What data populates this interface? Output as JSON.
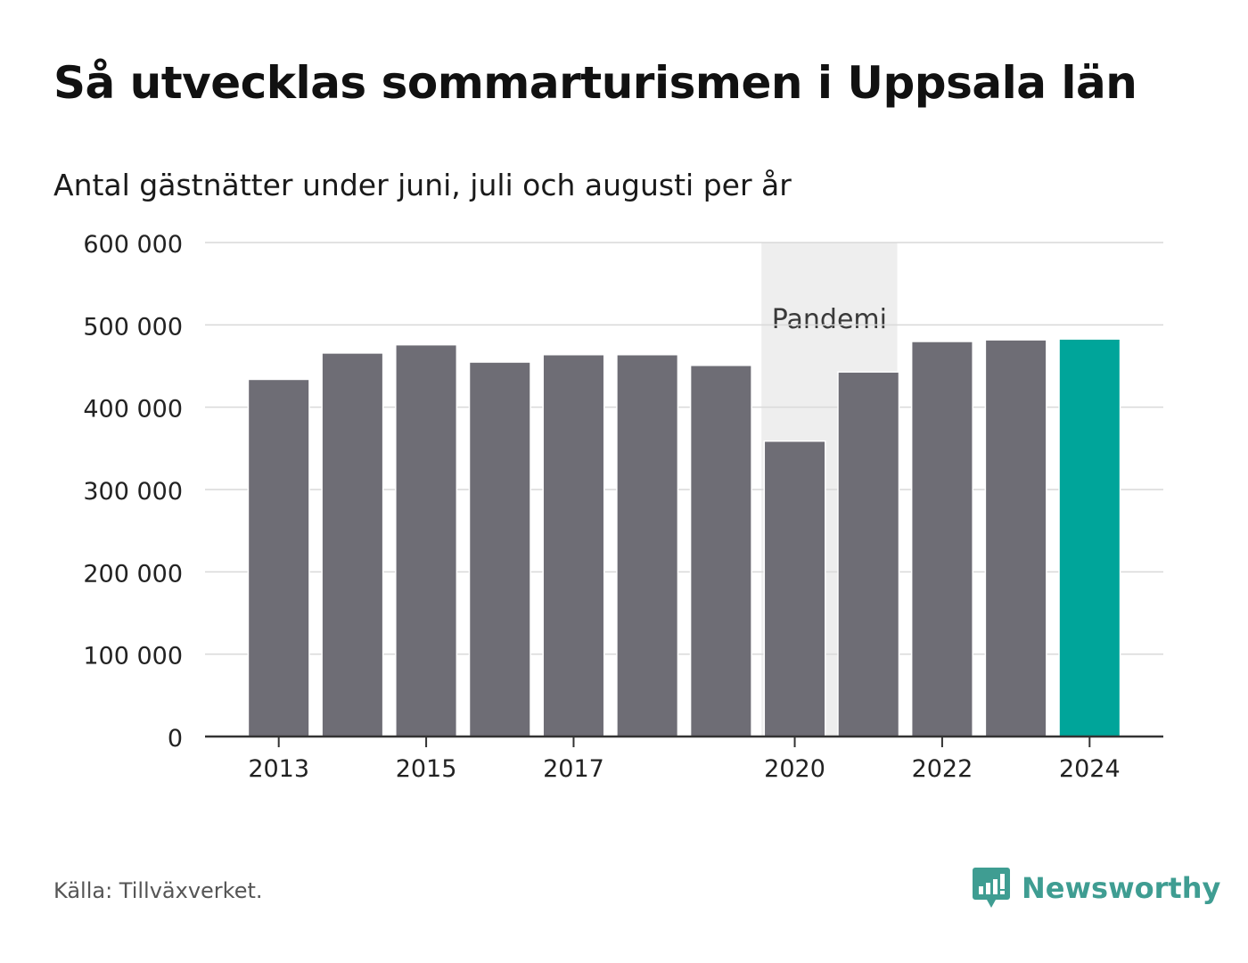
{
  "header": {
    "title": "Så utvecklas sommarturismen i Uppsala län",
    "subtitle": "Antal gästnätter under juni, juli och augusti per år"
  },
  "footer": {
    "source": "Källa: Tillväxverket.",
    "brand": "Newsworthy"
  },
  "colors": {
    "bar": "#6e6d75",
    "highlight": "#00a59a",
    "shade": "#eeeeee",
    "grid": "#d9d9d9",
    "axis": "#333333",
    "brand": "#3f9d92"
  },
  "icons": {
    "brand_logo": "bar-chart-speech-bubble-icon"
  },
  "chart_data": {
    "type": "bar",
    "categories": [
      "2013",
      "2014",
      "2015",
      "2016",
      "2017",
      "2018",
      "2019",
      "2020",
      "2021",
      "2022",
      "2023",
      "2024"
    ],
    "values": [
      433000,
      465000,
      475000,
      454000,
      463000,
      463000,
      450000,
      358000,
      442000,
      479000,
      481000,
      482000
    ],
    "highlight_category": "2024",
    "x_tick_labels": [
      "2013",
      "2015",
      "2017",
      "2020",
      "2022",
      "2024"
    ],
    "y_ticks": [
      0,
      100000,
      200000,
      300000,
      400000,
      500000,
      600000
    ],
    "y_tick_labels": [
      "0",
      "100 000",
      "200 000",
      "300 000",
      "400 000",
      "500 000",
      "600 000"
    ],
    "ylim": [
      0,
      600000
    ],
    "grid": true,
    "annotation": {
      "label": "Pandemi",
      "from": "2020",
      "to": "2021"
    }
  }
}
